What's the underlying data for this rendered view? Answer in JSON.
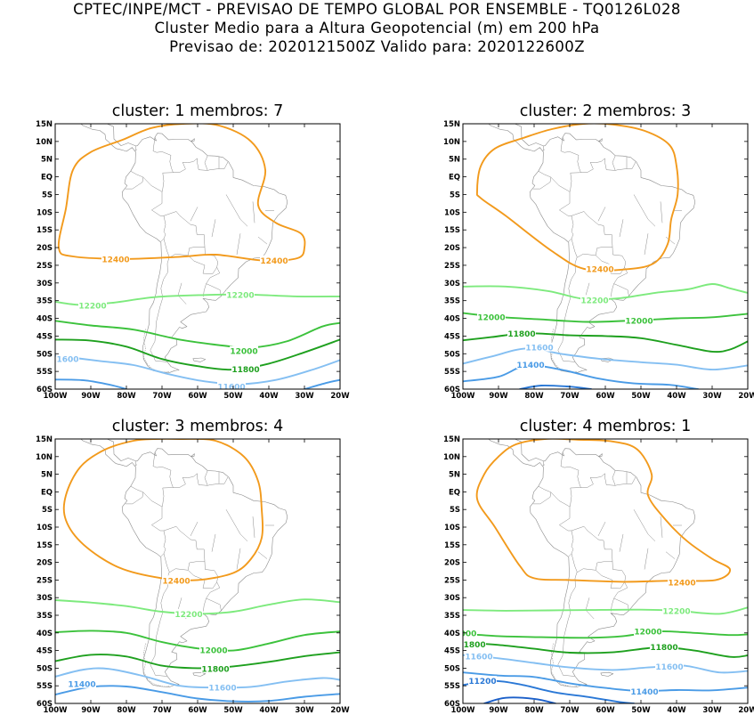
{
  "header": {
    "line1": "CPTEC/INPE/MCT - PREVISAO DE TEMPO GLOBAL POR ENSEMBLE - TQ0126L028",
    "line2": "Cluster Medio para a Altura Geopotencial (m) em 200 hPa",
    "line3": "Previsao de: 2020121500Z    Valido para: 2020122600Z"
  },
  "lat_ticks": [
    "15N",
    "10N",
    "5N",
    "EQ",
    "5S",
    "10S",
    "15S",
    "20S",
    "25S",
    "30S",
    "35S",
    "40S",
    "45S",
    "50S",
    "55S",
    "60S"
  ],
  "lon_ticks": [
    "100W",
    "90W",
    "80W",
    "70W",
    "60W",
    "50W",
    "40W",
    "30W",
    "20W"
  ],
  "level_colors": {
    "12400": "#f29a1c",
    "12200": "#7dea7d",
    "12000": "#3cc23c",
    "11800": "#1ea01e",
    "11600": "#84bff2",
    "11400": "#4a9be6",
    "11200": "#2a78d6"
  },
  "panels": [
    {
      "title": "cluster: 1   membros: 7",
      "labels": [
        {
          "text": "12400",
          "lon": -83.0,
          "lat": -23.3,
          "level": "12400"
        },
        {
          "text": "12400",
          "lon": -38.5,
          "lat": -23.6,
          "level": "12400"
        },
        {
          "text": "12200",
          "lon": -89.5,
          "lat": -36.4,
          "level": "12200"
        },
        {
          "text": "12200",
          "lon": -48.0,
          "lat": -33.3,
          "level": "12200"
        },
        {
          "text": "12000",
          "lon": -47.0,
          "lat": -49.2,
          "level": "12000"
        },
        {
          "text": "11800",
          "lon": -46.5,
          "lat": -54.4,
          "level": "11800"
        },
        {
          "text": "1600",
          "lon": -96.5,
          "lat": -51.4,
          "level": "11600"
        },
        {
          "text": "11600",
          "lon": -50.5,
          "lat": -59.3,
          "level": "11600"
        }
      ]
    },
    {
      "title": "cluster: 2   membros: 3",
      "labels": [
        {
          "text": "12400",
          "lon": -61.5,
          "lat": -26.0,
          "level": "12400"
        },
        {
          "text": "12200",
          "lon": -63.0,
          "lat": -34.8,
          "level": "12200"
        },
        {
          "text": "12000",
          "lon": -92.0,
          "lat": -39.6,
          "level": "12000"
        },
        {
          "text": "12000",
          "lon": -50.5,
          "lat": -40.6,
          "level": "12000"
        },
        {
          "text": "11800",
          "lon": -83.5,
          "lat": -44.3,
          "level": "11800"
        },
        {
          "text": "11600",
          "lon": -78.5,
          "lat": -48.2,
          "level": "11600"
        },
        {
          "text": "11400",
          "lon": -81.0,
          "lat": -53.1,
          "level": "11400"
        }
      ]
    },
    {
      "title": "cluster: 3   membros: 4",
      "labels": [
        {
          "text": "12400",
          "lon": -66.0,
          "lat": -25.1,
          "level": "12400"
        },
        {
          "text": "12200",
          "lon": -62.5,
          "lat": -34.6,
          "level": "12200"
        },
        {
          "text": "12000",
          "lon": -55.5,
          "lat": -44.9,
          "level": "12000"
        },
        {
          "text": "11800",
          "lon": -55.0,
          "lat": -50.2,
          "level": "11800"
        },
        {
          "text": "11600",
          "lon": -53.0,
          "lat": -55.5,
          "level": "11600"
        },
        {
          "text": "11400",
          "lon": -92.5,
          "lat": -54.5,
          "level": "11400"
        }
      ]
    },
    {
      "title": "cluster: 4   membros: 1",
      "labels": [
        {
          "text": "12400",
          "lon": -38.5,
          "lat": -25.6,
          "level": "12400"
        },
        {
          "text": "12200",
          "lon": -40.0,
          "lat": -33.7,
          "level": "12200"
        },
        {
          "text": "000",
          "lon": -98.5,
          "lat": -40.1,
          "level": "12000"
        },
        {
          "text": "12000",
          "lon": -48.0,
          "lat": -39.6,
          "level": "12000"
        },
        {
          "text": "11800",
          "lon": -97.5,
          "lat": -43.2,
          "level": "11800"
        },
        {
          "text": "11800",
          "lon": -43.5,
          "lat": -44.0,
          "level": "11800"
        },
        {
          "text": "11600",
          "lon": -95.5,
          "lat": -46.6,
          "level": "11600"
        },
        {
          "text": "11600",
          "lon": -42.0,
          "lat": -49.5,
          "level": "11600"
        },
        {
          "text": "11200",
          "lon": -94.5,
          "lat": -53.6,
          "level": "11200"
        },
        {
          "text": "11400",
          "lon": -49.0,
          "lat": -56.6,
          "level": "11400"
        }
      ]
    }
  ]
}
